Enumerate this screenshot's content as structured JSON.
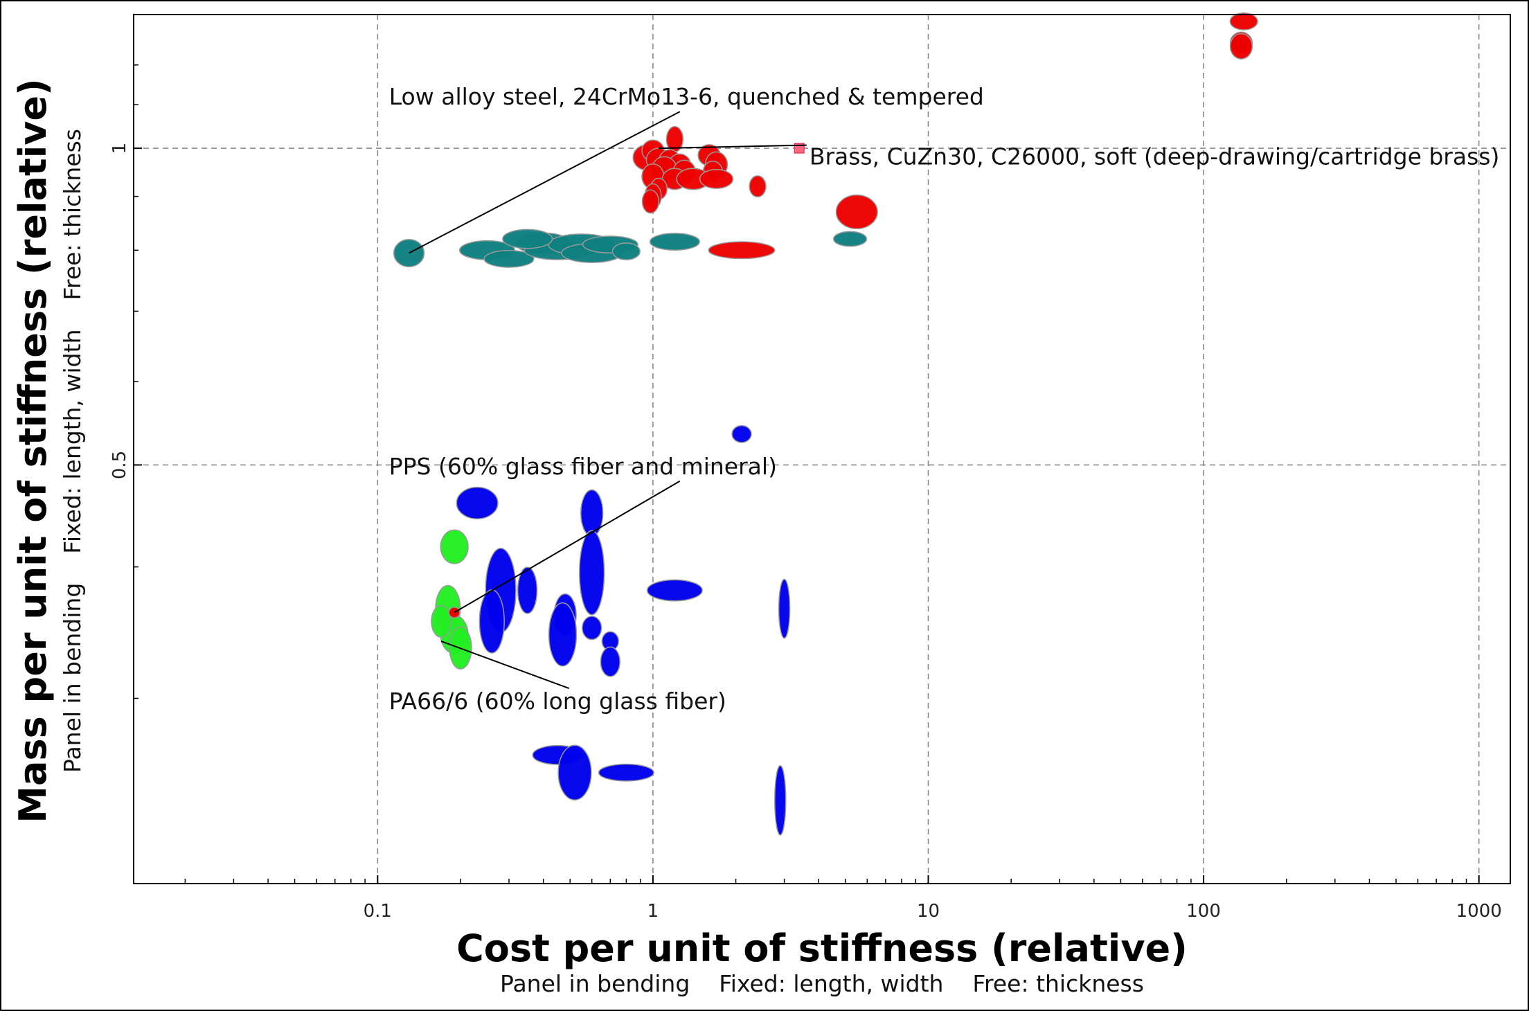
{
  "chart_data": {
    "type": "scatter",
    "xscale": "log",
    "yscale": "log",
    "xlim": [
      0.013,
      1300
    ],
    "ylim": [
      0.2,
      1.34
    ],
    "grid": true,
    "xticks": [
      {
        "v": 0.1,
        "label": "0.1"
      },
      {
        "v": 1,
        "label": "1"
      },
      {
        "v": 10,
        "label": "10"
      },
      {
        "v": 100,
        "label": "100"
      },
      {
        "v": 1000,
        "label": "1000"
      }
    ],
    "yticks": [
      {
        "v": 0.5,
        "label": "0.5"
      },
      {
        "v": 1,
        "label": "1"
      }
    ],
    "xlabel": "Cost per unit of stiffness (relative)",
    "xsublabel": "Panel in bending    Fixed: length, width    Free: thickness",
    "ylabel": "Mass per unit of stiffness (relative)",
    "ysublabel": "Panel in bending    Fixed: length, width    Free: thickness",
    "colors": {
      "red": "#ee0000",
      "teal": "#0e8080",
      "blue": "#0000ee",
      "green": "#22ee22"
    },
    "series": [
      {
        "color": "red",
        "points": [
          {
            "x": 140,
            "y": 1.32,
            "rx": 0.05,
            "ry": 0.008
          },
          {
            "x": 137,
            "y": 1.26,
            "rx": 0.04,
            "ry": 0.01
          },
          {
            "x": 137,
            "y": 1.25,
            "rx": 0.04,
            "ry": 0.012
          },
          {
            "x": 1.2,
            "y": 1.02,
            "rx": 0.03,
            "ry": 0.012
          },
          {
            "x": 0.95,
            "y": 0.98,
            "rx": 0.05,
            "ry": 0.012
          },
          {
            "x": 1.0,
            "y": 0.995,
            "rx": 0.04,
            "ry": 0.01
          },
          {
            "x": 1.05,
            "y": 0.975,
            "rx": 0.045,
            "ry": 0.011
          },
          {
            "x": 1.15,
            "y": 0.97,
            "rx": 0.04,
            "ry": 0.012
          },
          {
            "x": 1.25,
            "y": 0.965,
            "rx": 0.04,
            "ry": 0.01
          },
          {
            "x": 1.1,
            "y": 0.955,
            "rx": 0.045,
            "ry": 0.012
          },
          {
            "x": 1.3,
            "y": 0.95,
            "rx": 0.04,
            "ry": 0.011
          },
          {
            "x": 1.6,
            "y": 0.985,
            "rx": 0.04,
            "ry": 0.01
          },
          {
            "x": 1.7,
            "y": 0.965,
            "rx": 0.04,
            "ry": 0.012
          },
          {
            "x": 1.65,
            "y": 0.95,
            "rx": 0.035,
            "ry": 0.01
          },
          {
            "x": 1.0,
            "y": 0.94,
            "rx": 0.04,
            "ry": 0.012
          },
          {
            "x": 1.2,
            "y": 0.935,
            "rx": 0.045,
            "ry": 0.01
          },
          {
            "x": 1.4,
            "y": 0.935,
            "rx": 0.06,
            "ry": 0.01
          },
          {
            "x": 1.7,
            "y": 0.935,
            "rx": 0.06,
            "ry": 0.009
          },
          {
            "x": 1.05,
            "y": 0.915,
            "rx": 0.03,
            "ry": 0.01
          },
          {
            "x": 1.0,
            "y": 0.9,
            "rx": 0.03,
            "ry": 0.012
          },
          {
            "x": 0.98,
            "y": 0.89,
            "rx": 0.03,
            "ry": 0.011
          },
          {
            "x": 2.4,
            "y": 0.92,
            "rx": 0.03,
            "ry": 0.01
          },
          {
            "x": 5.5,
            "y": 0.87,
            "rx": 0.075,
            "ry": 0.016
          },
          {
            "x": 2.1,
            "y": 0.8,
            "rx": 0.12,
            "ry": 0.008
          }
        ]
      },
      {
        "color": "teal",
        "points": [
          {
            "x": 0.13,
            "y": 0.795,
            "rx": 0.055,
            "ry": 0.013
          },
          {
            "x": 0.25,
            "y": 0.8,
            "rx": 0.1,
            "ry": 0.009
          },
          {
            "x": 0.3,
            "y": 0.785,
            "rx": 0.09,
            "ry": 0.008
          },
          {
            "x": 0.4,
            "y": 0.812,
            "rx": 0.1,
            "ry": 0.01
          },
          {
            "x": 0.45,
            "y": 0.8,
            "rx": 0.12,
            "ry": 0.009
          },
          {
            "x": 0.55,
            "y": 0.81,
            "rx": 0.12,
            "ry": 0.01
          },
          {
            "x": 0.6,
            "y": 0.795,
            "rx": 0.11,
            "ry": 0.009
          },
          {
            "x": 0.35,
            "y": 0.82,
            "rx": 0.09,
            "ry": 0.009
          },
          {
            "x": 0.7,
            "y": 0.81,
            "rx": 0.1,
            "ry": 0.008
          },
          {
            "x": 0.8,
            "y": 0.798,
            "rx": 0.05,
            "ry": 0.008
          },
          {
            "x": 1.2,
            "y": 0.815,
            "rx": 0.09,
            "ry": 0.008
          },
          {
            "x": 5.2,
            "y": 0.82,
            "rx": 0.06,
            "ry": 0.007
          }
        ]
      },
      {
        "color": "blue",
        "points": [
          {
            "x": 2.1,
            "y": 0.535,
            "rx": 0.035,
            "ry": 0.008
          },
          {
            "x": 0.23,
            "y": 0.46,
            "rx": 0.075,
            "ry": 0.015
          },
          {
            "x": 0.6,
            "y": 0.45,
            "rx": 0.04,
            "ry": 0.022
          },
          {
            "x": 0.6,
            "y": 0.395,
            "rx": 0.045,
            "ry": 0.04
          },
          {
            "x": 0.28,
            "y": 0.38,
            "rx": 0.055,
            "ry": 0.04
          },
          {
            "x": 0.35,
            "y": 0.38,
            "rx": 0.035,
            "ry": 0.022
          },
          {
            "x": 0.26,
            "y": 0.355,
            "rx": 0.045,
            "ry": 0.03
          },
          {
            "x": 0.48,
            "y": 0.36,
            "rx": 0.04,
            "ry": 0.02
          },
          {
            "x": 0.47,
            "y": 0.345,
            "rx": 0.05,
            "ry": 0.03
          },
          {
            "x": 0.6,
            "y": 0.35,
            "rx": 0.035,
            "ry": 0.011
          },
          {
            "x": 0.7,
            "y": 0.34,
            "rx": 0.03,
            "ry": 0.009
          },
          {
            "x": 0.7,
            "y": 0.325,
            "rx": 0.035,
            "ry": 0.014
          },
          {
            "x": 1.2,
            "y": 0.38,
            "rx": 0.1,
            "ry": 0.01
          },
          {
            "x": 3.0,
            "y": 0.365,
            "rx": 0.02,
            "ry": 0.028
          },
          {
            "x": 0.45,
            "y": 0.265,
            "rx": 0.09,
            "ry": 0.009
          },
          {
            "x": 0.52,
            "y": 0.255,
            "rx": 0.06,
            "ry": 0.026
          },
          {
            "x": 0.8,
            "y": 0.255,
            "rx": 0.1,
            "ry": 0.008
          },
          {
            "x": 2.9,
            "y": 0.24,
            "rx": 0.02,
            "ry": 0.033
          }
        ]
      },
      {
        "color": "green",
        "points": [
          {
            "x": 0.19,
            "y": 0.418,
            "rx": 0.05,
            "ry": 0.016
          },
          {
            "x": 0.18,
            "y": 0.365,
            "rx": 0.045,
            "ry": 0.022
          },
          {
            "x": 0.19,
            "y": 0.345,
            "rx": 0.05,
            "ry": 0.018
          },
          {
            "x": 0.17,
            "y": 0.355,
            "rx": 0.035,
            "ry": 0.015
          },
          {
            "x": 0.2,
            "y": 0.335,
            "rx": 0.04,
            "ry": 0.02
          }
        ]
      },
      {
        "color": "red",
        "points": [
          {
            "x": 0.19,
            "y": 0.362,
            "rx": 0.02,
            "ry": 0.005
          }
        ]
      }
    ],
    "highlight_marker": {
      "x": 3.4,
      "y": 1.0,
      "color": "#ff6680"
    },
    "annotations": [
      {
        "text": "Low alloy steel, 24CrMo13-6, quenched & tempered",
        "tx": 0.11,
        "ty": 1.1,
        "px": 0.13,
        "py": 0.795,
        "anchor": "start"
      },
      {
        "text": "Brass, CuZn30, C26000, soft (deep-drawing/cartridge brass)",
        "tx": 3.7,
        "ty": 0.965,
        "px": 1.05,
        "py": 1.0,
        "anchor": "start"
      },
      {
        "text": "PPS (60% glass fiber and mineral)",
        "tx": 0.11,
        "ty": 0.49,
        "px": 0.19,
        "py": 0.362,
        "anchor": "start"
      },
      {
        "text": "PA66/6 (60% long glass fiber)",
        "tx": 0.11,
        "ty": 0.293,
        "px": 0.17,
        "py": 0.34,
        "anchor": "start"
      }
    ]
  }
}
